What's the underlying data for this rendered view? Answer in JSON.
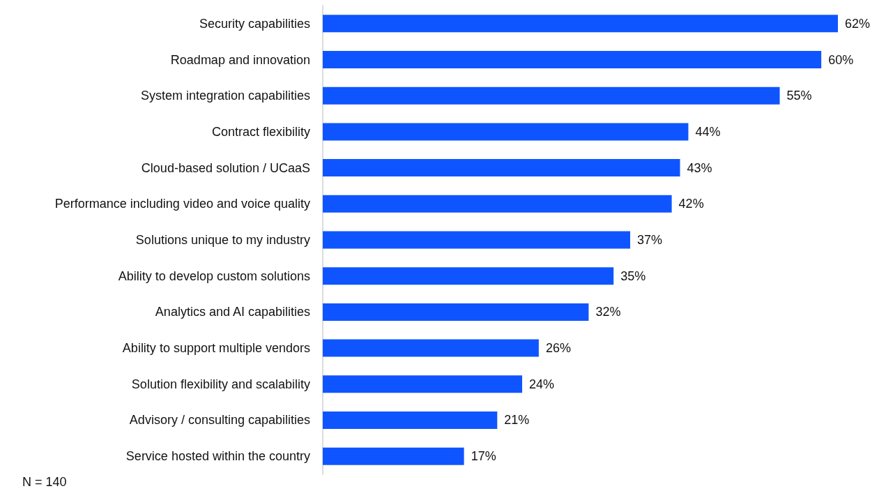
{
  "chart_data": {
    "type": "bar",
    "orientation": "horizontal",
    "categories": [
      "Security capabilities",
      "Roadmap and innovation",
      "System integration capabilities",
      "Contract flexibility",
      "Cloud-based solution / UCaaS",
      "Performance including video and voice quality",
      "Solutions unique to my industry",
      "Ability to develop custom solutions",
      "Analytics and AI capabilities",
      "Ability to support multiple vendors",
      "Solution flexibility and scalability",
      "Advisory / consulting capabilities",
      "Service hosted within the country"
    ],
    "values": [
      62,
      60,
      55,
      44,
      43,
      42,
      37,
      35,
      32,
      26,
      24,
      21,
      17
    ],
    "value_labels": [
      "62%",
      "60%",
      "55%",
      "44%",
      "43%",
      "42%",
      "37%",
      "35%",
      "32%",
      "26%",
      "24%",
      "21%",
      "17%"
    ],
    "color": "#0f55ff",
    "grid": false,
    "annotations": [
      "N = 140"
    ]
  }
}
